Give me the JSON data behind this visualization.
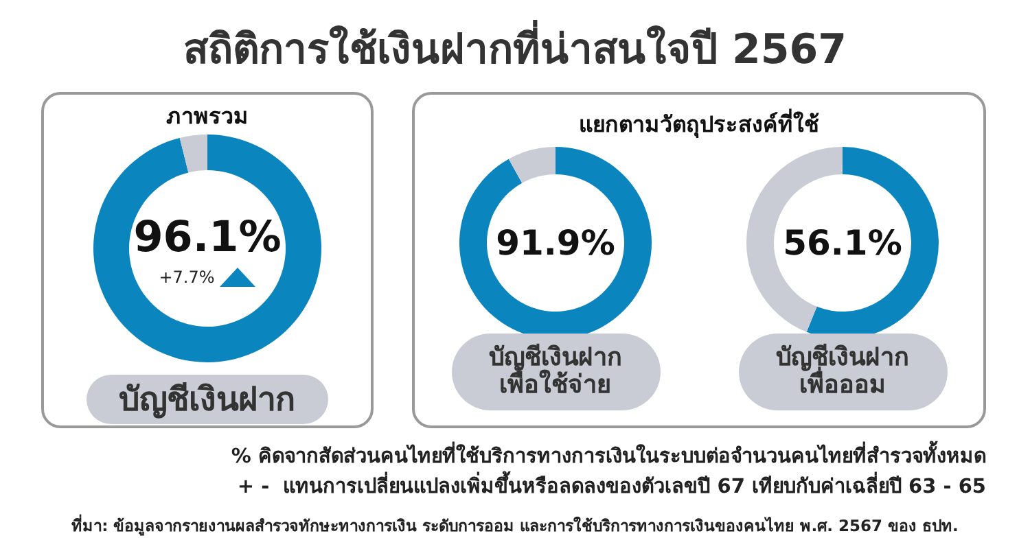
{
  "chart_data": [
    {
      "type": "donut",
      "title": "สถิติการใช้เงินฝากที่น่าสนใจปี 2567",
      "subtitle": "ภาพรวม",
      "categories": [
        "บัญชีเงินฝาก",
        null
      ],
      "values": [
        96.1,
        3.9
      ],
      "colors": [
        "#0a85bd",
        "#c9ccd4"
      ],
      "value_labels": [
        "96.1%",
        null
      ],
      "annotations": [
        "+7.7%"
      ]
    },
    {
      "type": "donut",
      "subtitle": "แยกตามวัตถุประสงค์ที่ใช้",
      "categories": [
        "บัญชีเงินฝาก\nเพื่อใช้จ่าย",
        null
      ],
      "values": [
        91.9,
        8.1
      ],
      "colors": [
        "#0a85bd",
        "#c9ccd4"
      ],
      "value_labels": [
        "91.9%",
        null
      ]
    },
    {
      "type": "donut",
      "categories": [
        "บัญชีเงินฝาก\nเพื่อออม",
        null
      ],
      "values": [
        56.1,
        43.9
      ],
      "colors": [
        "#0a85bd",
        "#c9ccd4"
      ],
      "value_labels": [
        "56.1%",
        null
      ],
      "annotations": [
        "% คิดจากสัดส่วนคนไทยที่ใช้บริการทางการเงินในระบบต่อจำนวนคนไทยที่สำรวจทั้งหมด",
        "+ -  แทนการเปลี่ยนแปลงเพิ่มขึ้นหรือลดลงของตัวเลขปี 67 เทียบกับค่าเฉลี่ยปี 63 - 65",
        "ที่มา: ข้อมูลจากรายงานผลสำรวจทักษะทางการเงิน ระดับการออม และการใช้บริการทางการเงินของคนไทย พ.ศ. 2567 ของ ธปท."
      ]
    }
  ]
}
